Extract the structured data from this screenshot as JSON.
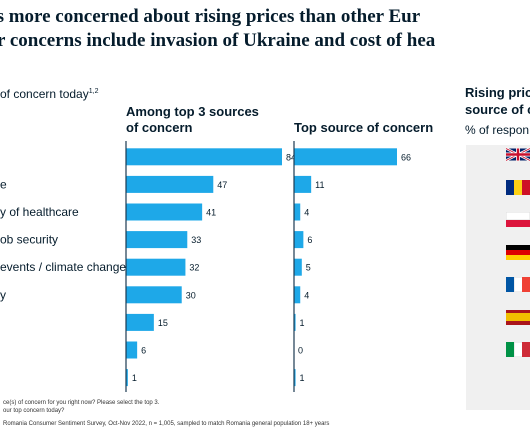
{
  "title": {
    "line1": "ns more concerned about rising prices than other Eur",
    "line2": "r concerns include invasion of Ukraine and cost of hea"
  },
  "left_header": "of concern today",
  "left_header_sup": "1,2",
  "col1_header": [
    "Among top 3 sources",
    "of concern"
  ],
  "col2_header": "Top source of concern",
  "right_header": [
    "Rising pric",
    "source of c"
  ],
  "right_subheader": "% of respon",
  "notes": [
    "ce(s) of concern for you right now? Please select the top 3.",
    "our top concern today?",
    "Romania Consumer Sentiment Survey, Oct-Nov 2022, n = 1,005, sampled to match Romania general population 18+ years"
  ],
  "colors": {
    "bar": "#1ea8e8",
    "axis": "#1c3a52",
    "text": "#051c2c",
    "panel": "#f0f0f0"
  },
  "flags": [
    {
      "icon": "uk-flag-icon"
    },
    {
      "icon": "romania-flag-icon",
      "stripes": [
        "#002b7f",
        "#fcd116",
        "#ce1126"
      ],
      "dir": "v"
    },
    {
      "icon": "poland-flag-icon",
      "stripes": [
        "#ffffff",
        "#dc143c"
      ],
      "dir": "h"
    },
    {
      "icon": "germany-flag-icon",
      "stripes": [
        "#000000",
        "#dd0000",
        "#ffce00"
      ],
      "dir": "h"
    },
    {
      "icon": "france-flag-icon",
      "stripes": [
        "#0055a4",
        "#ffffff",
        "#ef4135"
      ],
      "dir": "v"
    },
    {
      "icon": "spain-flag-icon",
      "stripes": [
        "#aa151b",
        "#f1bf00",
        "#aa151b"
      ],
      "dir": "h3"
    },
    {
      "icon": "italy-flag-icon",
      "stripes": [
        "#009246",
        "#ffffff",
        "#ce2b37"
      ],
      "dir": "v"
    }
  ],
  "chart_data": {
    "type": "bar",
    "orientation": "horizontal",
    "categories": [
      "",
      "e",
      "y of healthcare",
      "ob security",
      "events / climate change",
      "y",
      "",
      "",
      ""
    ],
    "series": [
      {
        "name": "Among top 3 sources of concern",
        "values": [
          84,
          47,
          41,
          33,
          32,
          30,
          15,
          6,
          1
        ]
      },
      {
        "name": "Top source of concern",
        "values": [
          66,
          11,
          4,
          6,
          5,
          4,
          1,
          0,
          1
        ]
      }
    ]
  }
}
